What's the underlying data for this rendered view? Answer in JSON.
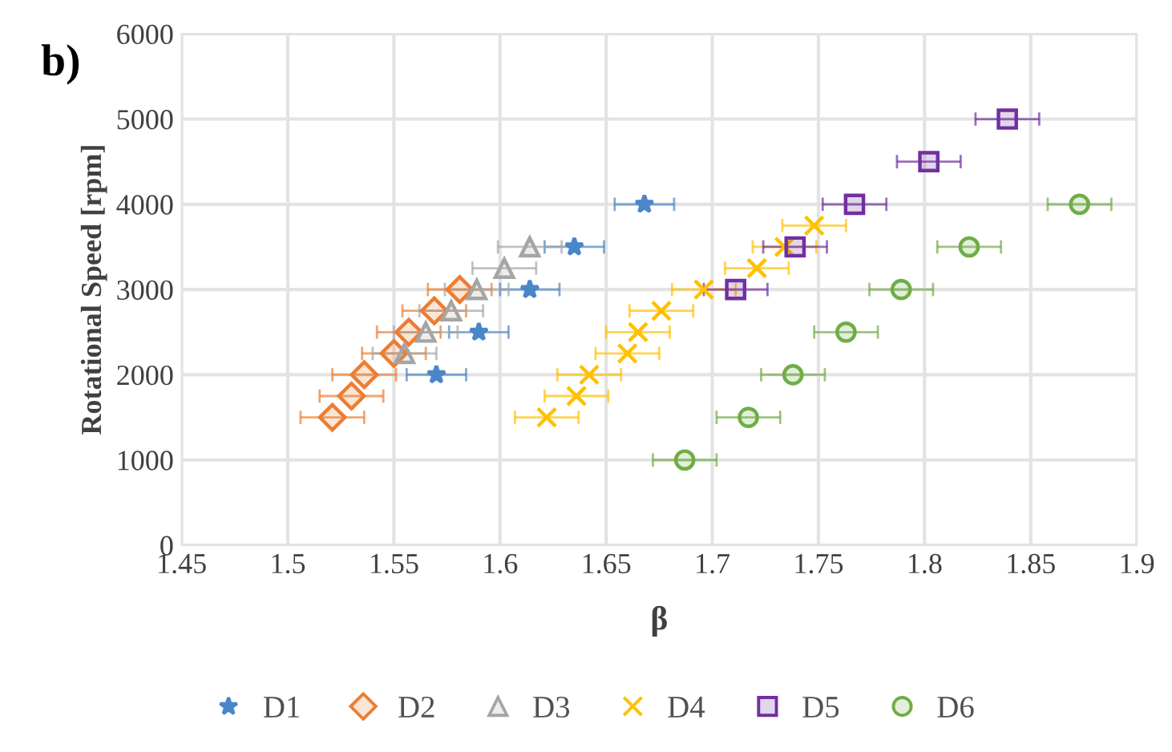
{
  "chart_data": {
    "type": "scatter",
    "title": "b)",
    "xlabel": "β",
    "ylabel": "Rotational Speed [rpm]",
    "xlim": [
      1.45,
      1.9
    ],
    "xticks": [
      1.45,
      1.5,
      1.55,
      1.6,
      1.65,
      1.7,
      1.75,
      1.8,
      1.85,
      1.9
    ],
    "ylim": [
      0,
      6000
    ],
    "yticks": [
      0,
      1000,
      2000,
      3000,
      4000,
      5000,
      6000
    ],
    "grid": true,
    "legend": "bottom",
    "series": [
      {
        "name": "D1",
        "color": "#4a86c8",
        "marker": "star",
        "x": [
          1.57,
          1.59,
          1.614,
          1.635,
          1.668
        ],
        "values": [
          2000,
          2500,
          3000,
          3500,
          4000
        ],
        "xerrors": [
          0.014,
          0.014,
          0.014,
          0.014,
          0.014
        ]
      },
      {
        "name": "D2",
        "color": "#ed7d31",
        "marker": "diamond",
        "x": [
          1.521,
          1.53,
          1.536,
          1.55,
          1.557,
          1.569,
          1.581
        ],
        "values": [
          1500,
          1750,
          2000,
          2250,
          2500,
          2750,
          3000
        ],
        "xerrors": [
          0.015,
          0.015,
          0.015,
          0.015,
          0.015,
          0.015,
          0.015
        ]
      },
      {
        "name": "D3",
        "color": "#a5a5a5",
        "marker": "triangle",
        "x": [
          1.555,
          1.565,
          1.577,
          1.589,
          1.602,
          1.614
        ],
        "values": [
          2250,
          2500,
          2750,
          3000,
          3250,
          3500
        ],
        "xerrors": [
          0.015,
          0.015,
          0.015,
          0.015,
          0.015,
          0.015
        ]
      },
      {
        "name": "D4",
        "color": "#ffc000",
        "marker": "cross",
        "x": [
          1.622,
          1.636,
          1.642,
          1.66,
          1.665,
          1.676,
          1.696,
          1.721,
          1.734,
          1.748
        ],
        "values": [
          1500,
          1750,
          2000,
          2250,
          2500,
          2750,
          3000,
          3250,
          3500,
          3750
        ],
        "xerrors": [
          0.015,
          0.015,
          0.015,
          0.015,
          0.015,
          0.015,
          0.015,
          0.015,
          0.015,
          0.015
        ]
      },
      {
        "name": "D5",
        "color": "#7030a0",
        "marker": "square",
        "x": [
          1.711,
          1.739,
          1.767,
          1.802,
          1.839
        ],
        "values": [
          3000,
          3500,
          4000,
          4500,
          5000
        ],
        "xerrors": [
          0.015,
          0.015,
          0.015,
          0.015,
          0.015
        ]
      },
      {
        "name": "D6",
        "color": "#70ad47",
        "marker": "circle",
        "x": [
          1.687,
          1.717,
          1.738,
          1.763,
          1.789,
          1.821,
          1.873
        ],
        "values": [
          1000,
          1500,
          2000,
          2500,
          3000,
          3500,
          4000
        ],
        "xerrors": [
          0.015,
          0.015,
          0.015,
          0.015,
          0.015,
          0.015,
          0.015
        ]
      }
    ]
  }
}
